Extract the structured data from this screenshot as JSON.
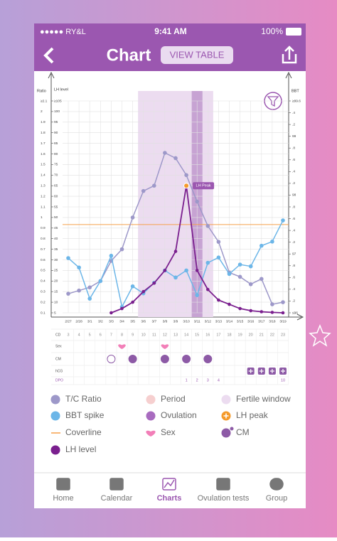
{
  "status_bar": {
    "carrier": "●●●●● RY&L",
    "time": "9:41 AM",
    "battery": "100%"
  },
  "header": {
    "title": "Chart",
    "button": "VIEW TABLE"
  },
  "chart_data": {
    "type": "line",
    "categories": [
      "2/27",
      "2/28",
      "3/1",
      "3/2",
      "3/3",
      "3/4",
      "3/5",
      "3/6",
      "3/7",
      "3/8",
      "3/9",
      "3/10",
      "3/11",
      "3/12",
      "3/13",
      "3/14",
      "3/15",
      "3/16",
      "3/17",
      "3/18",
      "3/19"
    ],
    "ylabel": "Ratio",
    "y2label": "LH level",
    "y3label": "BBT",
    "ylim": [
      0.1,
      2.1
    ],
    "yticks": [
      0.1,
      0.2,
      0.3,
      0.4,
      0.5,
      0.6,
      0.7,
      0.8,
      0.9,
      1,
      1.1,
      1.2,
      1.3,
      1.4,
      1.5,
      1.6,
      1.7,
      1.8,
      1.9,
      2,
      {
        "value": 2.1,
        "label": "≥2.1"
      }
    ],
    "y2lim": [
      5,
      105
    ],
    "y2ticks": [
      5,
      10,
      15,
      20,
      25,
      30,
      35,
      40,
      45,
      50,
      55,
      60,
      65,
      70,
      75,
      80,
      85,
      90,
      95,
      100,
      {
        "value": 105,
        "label": "≥105"
      }
    ],
    "y3lim": [
      96,
      99.6
    ],
    "y3ticks": [
      {
        "value": 96,
        "label": "≤96"
      },
      {
        "value": 96.2,
        "label": ".2"
      },
      {
        "value": 96.4,
        "label": ".4"
      },
      {
        "value": 96.6,
        "label": ".6"
      },
      {
        "value": 96.8,
        "label": ".8"
      },
      97,
      {
        "value": 97.2,
        "label": ".2"
      },
      {
        "value": 97.4,
        "label": ".4"
      },
      {
        "value": 97.6,
        "label": ".6"
      },
      {
        "value": 97.8,
        "label": ".8"
      },
      98,
      {
        "value": 98.2,
        "label": ".2"
      },
      {
        "value": 98.4,
        "label": ".4"
      },
      {
        "value": 98.6,
        "label": ".6"
      },
      {
        "value": 98.8,
        "label": ".8"
      },
      99,
      {
        "value": 99.2,
        "label": ".2"
      },
      {
        "value": 99.4,
        "label": ".4"
      },
      {
        "value": 99.6,
        "label": "≥99.6"
      }
    ],
    "series": [
      {
        "name": "T/C Ratio",
        "color": "#9d98c9",
        "axis": "y",
        "values": [
          0.28,
          0.31,
          0.34,
          0.4,
          0.59,
          0.7,
          1.0,
          1.25,
          1.3,
          1.61,
          1.56,
          1.4,
          1.15,
          0.92,
          0.77,
          0.48,
          0.44,
          0.37,
          0.42,
          0.18,
          0.2
        ]
      },
      {
        "name": "BBT spike",
        "color": "#6cb6e8",
        "axis": "y3",
        "values": [
          96.93,
          96.77,
          96.24,
          96.54,
          96.97,
          96.1,
          96.45,
          96.33,
          96.51,
          96.72,
          96.6,
          96.72,
          96.3,
          96.85,
          96.94,
          96.66,
          96.82,
          96.79,
          97.14,
          97.21,
          97.57
        ]
      },
      {
        "name": "LH level",
        "color": "#7a1f8e",
        "axis": "y2",
        "values": [
          null,
          null,
          null,
          null,
          5,
          7,
          10,
          15,
          19,
          25,
          34,
          65,
          25,
          16,
          11,
          9,
          7,
          6,
          5.5,
          5.2,
          5
        ]
      }
    ],
    "coverline": {
      "name": "Coverline",
      "value": 97.5,
      "color": "#f5a04a",
      "axis": "y3"
    },
    "annotation": "LH Peak",
    "fertile_window": [
      7,
      13
    ],
    "ovulation_index": 12,
    "grid": true
  },
  "rows": {
    "labels": [
      "CD",
      "Sex",
      "CM",
      "hCG",
      "DPO"
    ],
    "cd": [
      3,
      4,
      5,
      6,
      7,
      8,
      9,
      10,
      11,
      12,
      13,
      14,
      15,
      16,
      17,
      18,
      19,
      20,
      21,
      22,
      23
    ],
    "dpo": [
      null,
      null,
      null,
      null,
      null,
      null,
      null,
      null,
      null,
      null,
      null,
      1,
      2,
      3,
      4,
      null,
      null,
      null,
      null,
      null,
      10
    ],
    "sex_days": [
      5,
      9
    ],
    "cm_days": [
      4,
      6,
      9,
      11,
      13
    ],
    "hcg_days": [
      17,
      18,
      19,
      20
    ]
  },
  "legend": [
    {
      "label": "Period",
      "color": "#f6cfcf"
    },
    {
      "label": "Fertile window",
      "color": "#ecdcf0"
    },
    {
      "label": "Ovulation",
      "color": "#a86bbf"
    },
    {
      "label": "LH peak",
      "color": "#f59a2b"
    },
    {
      "label": "Sex",
      "color": "#f27fb8"
    },
    {
      "label": "CM",
      "color": "#8d5aa6"
    }
  ],
  "tabs": [
    "Home",
    "Calendar",
    "Charts",
    "Ovulation tests",
    "Group"
  ],
  "active_tab": 2
}
